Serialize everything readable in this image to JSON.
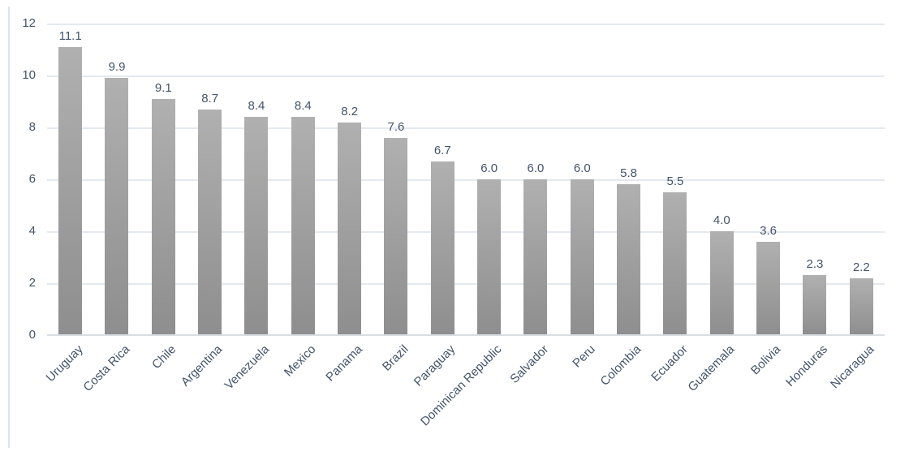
{
  "chart_data": {
    "type": "bar",
    "title": "",
    "xlabel": "",
    "ylabel": "",
    "categories": [
      "Uruguay",
      "Costa Rica",
      "Chile",
      "Argentina",
      "Venezuela",
      "Mexico",
      "Panama",
      "Brazil",
      "Paraguay",
      "Dominican Republic",
      "Salvador",
      "Peru",
      "Colombia",
      "Ecuador",
      "Guatemala",
      "Bolivia",
      "Honduras",
      "Nicaragua"
    ],
    "values": [
      11.1,
      9.9,
      9.1,
      8.7,
      8.4,
      8.4,
      8.2,
      7.6,
      6.7,
      6.0,
      6.0,
      6.0,
      5.8,
      5.5,
      4.0,
      3.6,
      2.3,
      2.2
    ],
    "value_labels": [
      "11.1",
      "9.9",
      "9.1",
      "8.7",
      "8.4",
      "8.4",
      "8.2",
      "7.6",
      "6.7",
      "6.0",
      "6.0",
      "6.0",
      "5.8",
      "5.5",
      "4.0",
      "3.6",
      "2.3",
      "2.2"
    ],
    "ylim": [
      0,
      12
    ],
    "y_ticks": [
      0,
      2,
      4,
      6,
      8,
      10,
      12
    ],
    "grid": true,
    "legend": false,
    "x_tick_rotation_deg": 45,
    "colors": {
      "bar_top": "#b0b0b0",
      "bar_bottom": "#8e8e8e",
      "text": "#44546a",
      "gridline": "#e4e9f0",
      "axis_line": "#d7dde5",
      "chart_border": "#dfe5ec",
      "background": "#ffffff"
    }
  }
}
